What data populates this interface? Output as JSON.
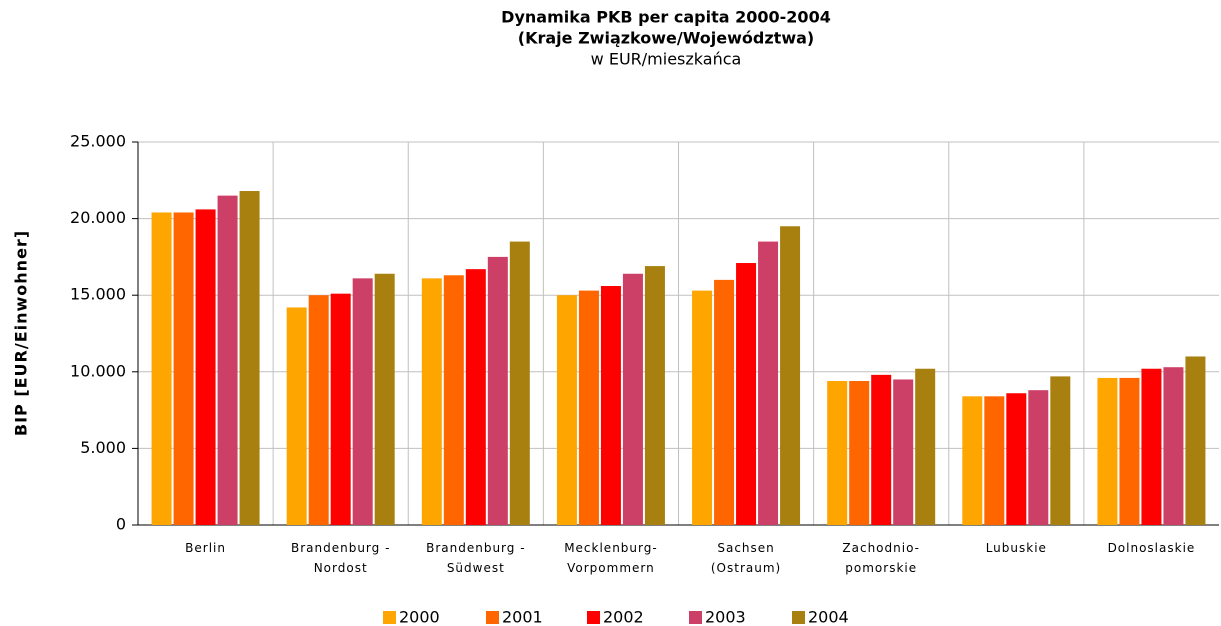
{
  "chart_data": {
    "type": "bar",
    "title": [
      "Dynamika PKB per capita 2000-2004",
      "(Kraje Związkowe/Województwa)"
    ],
    "subtitle": "w EUR/mieszkańca",
    "y_axis_label": "BIP [EUR/Einwohner]",
    "categories": [
      [
        "Berlin"
      ],
      [
        "Brandenburg -",
        "Nordost"
      ],
      [
        "Brandenburg -",
        "Südwest"
      ],
      [
        "Mecklenburg-",
        "Vorpommern"
      ],
      [
        "Sachsen",
        "(Ostraum)"
      ],
      [
        "Zachodnio-",
        "pomorskie"
      ],
      [
        "Lubuskie"
      ],
      [
        "Dolnoslaskie"
      ]
    ],
    "series": [
      {
        "name": "2000",
        "color": "#FFA500",
        "values": [
          20400,
          14200,
          16100,
          15000,
          15300,
          9400,
          8400,
          9600
        ]
      },
      {
        "name": "2001",
        "color": "#FF6600",
        "values": [
          20400,
          15000,
          16300,
          15300,
          16000,
          9400,
          8400,
          9600
        ]
      },
      {
        "name": "2002",
        "color": "#FF0000",
        "values": [
          20600,
          15100,
          16700,
          15600,
          17100,
          9800,
          8600,
          10200
        ]
      },
      {
        "name": "2003",
        "color": "#CC3F66",
        "values": [
          21500,
          16100,
          17500,
          16400,
          18500,
          9500,
          8800,
          10300
        ]
      },
      {
        "name": "2004",
        "color": "#A8800F",
        "values": [
          21800,
          16400,
          18500,
          16900,
          19500,
          10200,
          9700,
          11000
        ]
      }
    ],
    "ylim": [
      0,
      25000
    ],
    "yticks": [
      0,
      {
        "value": 5000,
        "label": "5.000"
      },
      {
        "value": 10000,
        "label": "10.000"
      },
      {
        "value": 15000,
        "label": "15.000"
      },
      {
        "value": 20000,
        "label": "20.000"
      },
      {
        "value": 25000,
        "label": "25.000"
      }
    ],
    "grid": true,
    "legend": "bottom"
  }
}
